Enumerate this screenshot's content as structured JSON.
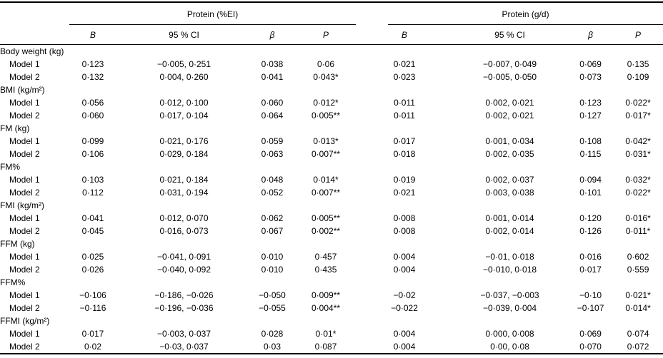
{
  "page": {
    "background": "#ffffff",
    "text_color": "#000000",
    "rule_color": "#000000"
  },
  "table": {
    "group_headers": [
      {
        "label": "Protein (%EI)"
      },
      {
        "label": "Protein (g/d)"
      }
    ],
    "sub_columns": [
      "B",
      "95 % CI",
      "β",
      "P"
    ],
    "rows": [
      {
        "type": "group",
        "label": "Body weight (kg)"
      },
      {
        "type": "data",
        "label": "Model 1",
        "cells": [
          "0·123",
          "−0·005, 0·251",
          "0·038",
          "0·06",
          "0·021",
          "−0·007, 0·049",
          "0·069",
          "0·135"
        ]
      },
      {
        "type": "data",
        "label": "Model 2",
        "cells": [
          "0·132",
          "0·004, 0·260",
          "0·041",
          "0·043*",
          "0·023",
          "−0·005, 0·050",
          "0·073",
          "0·109"
        ]
      },
      {
        "type": "group",
        "label": "BMI (kg/m²)"
      },
      {
        "type": "data",
        "label": "Model 1",
        "cells": [
          "0·056",
          "0·012, 0·100",
          "0·060",
          "0·012*",
          "0·011",
          "0·002, 0·021",
          "0·123",
          "0·022*"
        ]
      },
      {
        "type": "data",
        "label": "Model 2",
        "cells": [
          "0·060",
          "0·017, 0·104",
          "0·064",
          "0·005**",
          "0·011",
          "0·002, 0·021",
          "0·127",
          "0·017*"
        ]
      },
      {
        "type": "group",
        "label": "FM (kg)"
      },
      {
        "type": "data",
        "label": "Model 1",
        "cells": [
          "0·099",
          "0·021, 0·176",
          "0·059",
          "0·013*",
          "0·017",
          "0·001, 0·034",
          "0·108",
          "0·042*"
        ]
      },
      {
        "type": "data",
        "label": "Model 2",
        "cells": [
          "0·106",
          "0·029, 0·184",
          "0·063",
          "0·007**",
          "0·018",
          "0·002, 0·035",
          "0·115",
          "0·031*"
        ]
      },
      {
        "type": "group",
        "label": "FM%"
      },
      {
        "type": "data",
        "label": "Model 1",
        "cells": [
          "0·103",
          "0·021, 0·184",
          "0·048",
          "0·014*",
          "0·019",
          "0·002, 0·037",
          "0·094",
          "0·032*"
        ]
      },
      {
        "type": "data",
        "label": "Model 2",
        "cells": [
          "0·112",
          "0·031, 0·194",
          "0·052",
          "0·007**",
          "0·021",
          "0·003, 0·038",
          "0·101",
          "0·022*"
        ]
      },
      {
        "type": "group",
        "label": "FMI (kg/m²)"
      },
      {
        "type": "data",
        "label": "Model 1",
        "cells": [
          "0·041",
          "0·012, 0·070",
          "0·062",
          "0·005**",
          "0·008",
          "0·001, 0·014",
          "0·120",
          "0·016*"
        ]
      },
      {
        "type": "data",
        "label": "Model 2",
        "cells": [
          "0·045",
          "0·016, 0·073",
          "0·067",
          "0·002**",
          "0·008",
          "0·002, 0·014",
          "0·126",
          "0·011*"
        ]
      },
      {
        "type": "group",
        "label": "FFM (kg)"
      },
      {
        "type": "data",
        "label": "Model 1",
        "cells": [
          "0·025",
          "−0·041, 0·091",
          "0·010",
          "0·457",
          "0·004",
          "−0·01, 0·018",
          "0·016",
          "0·602"
        ]
      },
      {
        "type": "data",
        "label": "Model 2",
        "cells": [
          "0·026",
          "−0·040, 0·092",
          "0·010",
          "0·435",
          "0·004",
          "−0·010, 0·018",
          "0·017",
          "0·559"
        ]
      },
      {
        "type": "group",
        "label": "FFM%"
      },
      {
        "type": "data",
        "label": "Model 1",
        "cells": [
          "−0·106",
          "−0·186, −0·026",
          "−0·050",
          "0·009**",
          "−0·02",
          "−0·037, −0·003",
          "−0·10",
          "0·021*"
        ]
      },
      {
        "type": "data",
        "label": "Model 2",
        "cells": [
          "−0·116",
          "−0·196, −0·036",
          "−0·055",
          "0·004**",
          "−0·022",
          "−0·039, 0·004",
          "−0·107",
          "0·014*"
        ]
      },
      {
        "type": "group",
        "label": "FFMI (kg/m²)"
      },
      {
        "type": "data",
        "label": "Model 1",
        "cells": [
          "0·017",
          "−0·003, 0·037",
          "0·028",
          "0·01*",
          "0·004",
          "0·000, 0·008",
          "0·069",
          "0·074"
        ]
      },
      {
        "type": "data",
        "label": "Model 2",
        "cells": [
          "0·02",
          "−0·03, 0·037",
          "0·03",
          "0·087",
          "0·004",
          "0·00, 0·08",
          "0·070",
          "0·072"
        ]
      }
    ]
  }
}
